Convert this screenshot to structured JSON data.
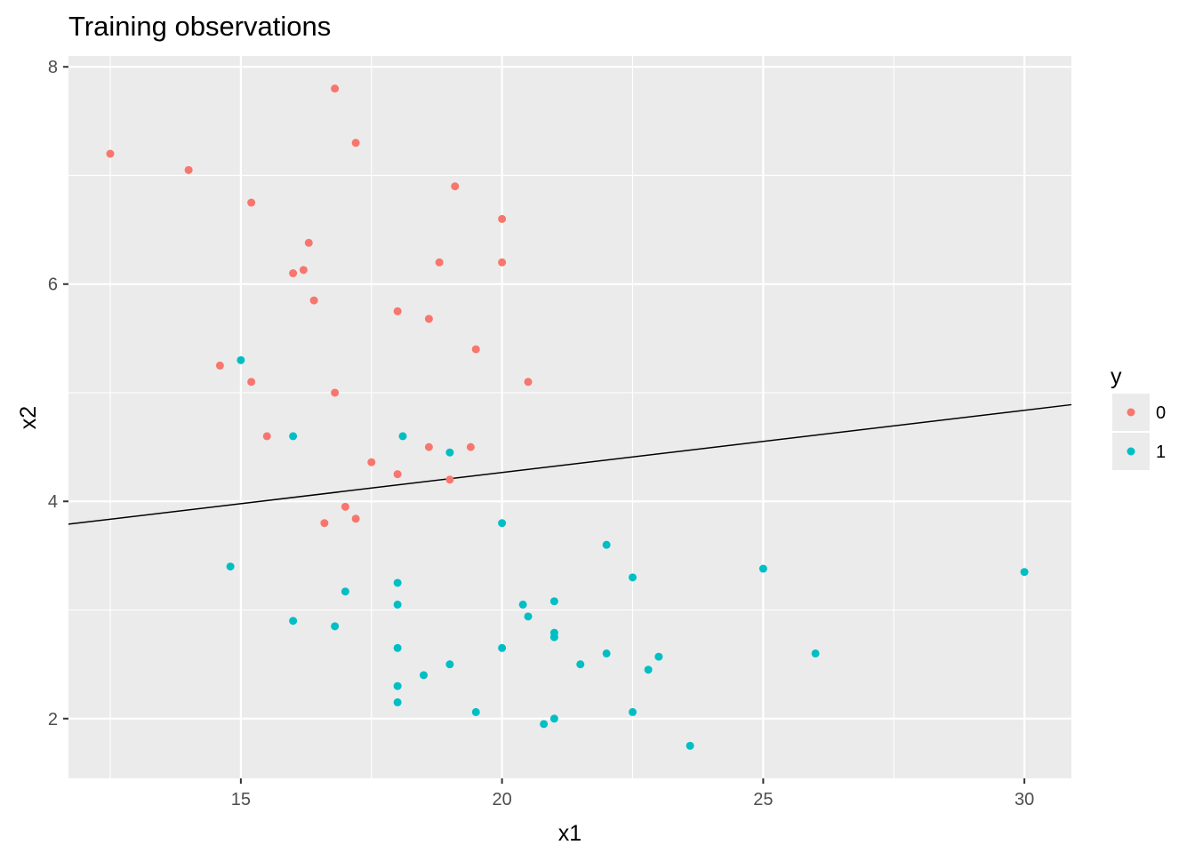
{
  "chart_data": {
    "type": "scatter",
    "title": "Training observations",
    "xlabel": "x1",
    "ylabel": "x2",
    "xlim": [
      11.7,
      30.9
    ],
    "ylim": [
      1.45,
      8.1
    ],
    "x_ticks": [
      15,
      20,
      25,
      30
    ],
    "x_tick_labels": [
      "15",
      "20",
      "25",
      "30"
    ],
    "y_ticks": [
      2,
      4,
      6,
      8
    ],
    "y_tick_labels": [
      "2",
      "4",
      "6",
      "8"
    ],
    "grid": true,
    "legend": {
      "title": "y",
      "position": "right"
    },
    "series": [
      {
        "name": "0",
        "color": "#F8766D",
        "points": [
          [
            12.5,
            7.2
          ],
          [
            14.0,
            7.05
          ],
          [
            15.2,
            6.75
          ],
          [
            16.8,
            7.8
          ],
          [
            17.2,
            7.3
          ],
          [
            19.1,
            6.9
          ],
          [
            20.0,
            6.6
          ],
          [
            16.3,
            6.38
          ],
          [
            16.2,
            6.13
          ],
          [
            16.0,
            6.1
          ],
          [
            18.8,
            6.2
          ],
          [
            20.0,
            6.2
          ],
          [
            16.4,
            5.85
          ],
          [
            18.0,
            5.75
          ],
          [
            18.6,
            5.68
          ],
          [
            19.5,
            5.4
          ],
          [
            14.6,
            5.25
          ],
          [
            15.2,
            5.1
          ],
          [
            16.8,
            5.0
          ],
          [
            20.5,
            5.1
          ],
          [
            15.5,
            4.6
          ],
          [
            18.6,
            4.5
          ],
          [
            19.4,
            4.5
          ],
          [
            17.5,
            4.36
          ],
          [
            18.0,
            4.25
          ],
          [
            19.0,
            4.2
          ],
          [
            17.0,
            3.95
          ],
          [
            17.2,
            3.84
          ],
          [
            16.6,
            3.8
          ]
        ]
      },
      {
        "name": "1",
        "color": "#00BFC4",
        "points": [
          [
            15.0,
            5.3
          ],
          [
            16.0,
            4.6
          ],
          [
            18.1,
            4.6
          ],
          [
            19.0,
            4.45
          ],
          [
            20.0,
            3.8
          ],
          [
            22.0,
            3.6
          ],
          [
            14.8,
            3.4
          ],
          [
            25.0,
            3.38
          ],
          [
            30.0,
            3.35
          ],
          [
            22.5,
            3.3
          ],
          [
            18.0,
            3.25
          ],
          [
            17.0,
            3.17
          ],
          [
            21.0,
            3.08
          ],
          [
            18.0,
            3.05
          ],
          [
            20.4,
            3.05
          ],
          [
            20.5,
            2.94
          ],
          [
            16.0,
            2.9
          ],
          [
            16.8,
            2.85
          ],
          [
            21.0,
            2.79
          ],
          [
            21.0,
            2.75
          ],
          [
            18.0,
            2.65
          ],
          [
            20.0,
            2.65
          ],
          [
            22.0,
            2.6
          ],
          [
            26.0,
            2.6
          ],
          [
            23.0,
            2.57
          ],
          [
            19.0,
            2.5
          ],
          [
            21.5,
            2.5
          ],
          [
            22.8,
            2.45
          ],
          [
            18.5,
            2.4
          ],
          [
            18.0,
            2.3
          ],
          [
            18.0,
            2.15
          ],
          [
            19.5,
            2.06
          ],
          [
            22.5,
            2.06
          ],
          [
            21.0,
            2.0
          ],
          [
            20.8,
            1.95
          ],
          [
            23.6,
            1.75
          ]
        ]
      }
    ],
    "reference_line": {
      "x": [
        11.7,
        30.9
      ],
      "y": [
        3.79,
        4.89
      ],
      "color": "#000000"
    }
  }
}
